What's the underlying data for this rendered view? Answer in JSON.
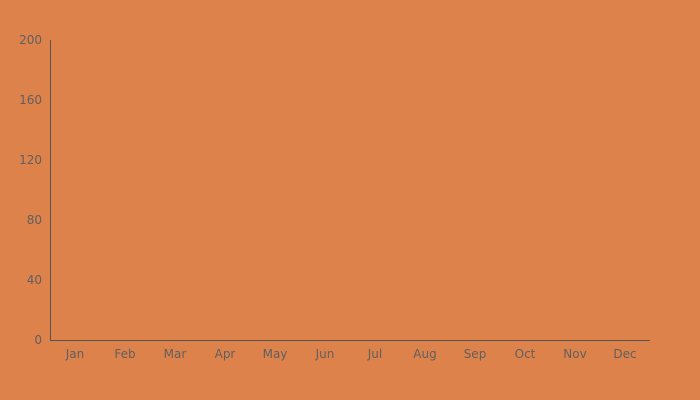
{
  "chart_data": {
    "type": "line",
    "title": "",
    "xlabel": "",
    "ylabel": "",
    "categories": [
      "Jan",
      "Feb",
      "Mar",
      "Apr",
      "May",
      "Jun",
      "Jul",
      "Aug",
      "Sep",
      "Oct",
      "Nov",
      "Dec"
    ],
    "y_ticks": [
      0,
      40,
      80,
      120,
      160,
      200
    ],
    "ylim": [
      0,
      200
    ],
    "series": [],
    "grid": false,
    "legend": "none"
  },
  "colors": {
    "background": "#de824c",
    "axis": "#555555",
    "tick_text": "#5f5f5f"
  }
}
